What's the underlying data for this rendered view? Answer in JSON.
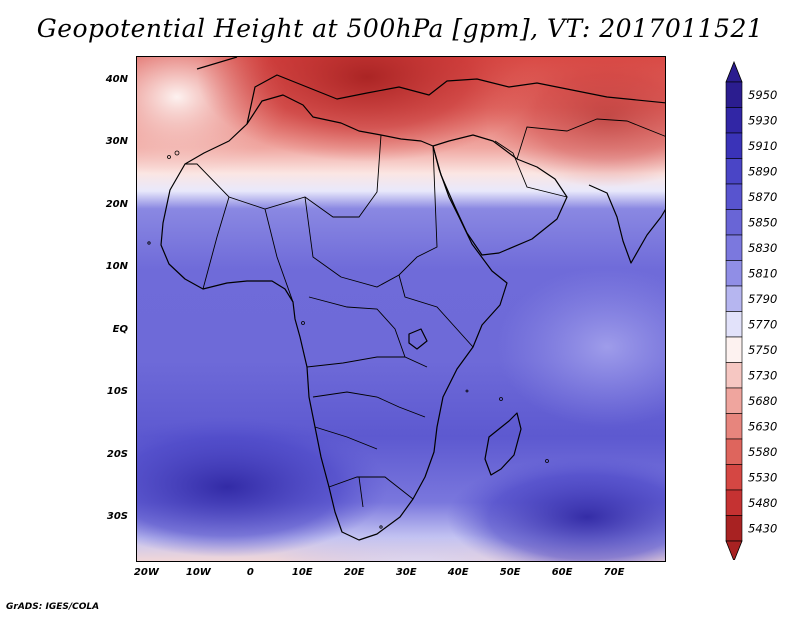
{
  "title": "Geopotential Height at 500hPa [gpm], VT: 2017011521",
  "credit": "GrADS: IGES/COLA",
  "map": {
    "y_axis": [
      {
        "label": "40N",
        "lat": 40
      },
      {
        "label": "30N",
        "lat": 30
      },
      {
        "label": "20N",
        "lat": 20
      },
      {
        "label": "10N",
        "lat": 10
      },
      {
        "label": "EQ",
        "lat": 0
      },
      {
        "label": "10S",
        "lat": -10
      },
      {
        "label": "20S",
        "lat": -20
      },
      {
        "label": "30S",
        "lat": -30
      }
    ],
    "x_axis": [
      {
        "label": "20W",
        "lon": -20
      },
      {
        "label": "10W",
        "lon": -10
      },
      {
        "label": "0",
        "lon": 0
      },
      {
        "label": "10E",
        "lon": 10
      },
      {
        "label": "20E",
        "lon": 20
      },
      {
        "label": "30E",
        "lon": 30
      },
      {
        "label": "40E",
        "lon": 40
      },
      {
        "label": "50E",
        "lon": 50
      },
      {
        "label": "60E",
        "lon": 60
      },
      {
        "label": "70E",
        "lon": 70
      }
    ],
    "lon_range": [
      -22,
      80
    ],
    "lat_range": [
      -37,
      44
    ]
  },
  "colorbar": {
    "levels": [
      "5950",
      "5930",
      "5910",
      "5890",
      "5870",
      "5850",
      "5830",
      "5810",
      "5790",
      "5770",
      "5750",
      "5730",
      "5680",
      "5630",
      "5580",
      "5530",
      "5480",
      "5430"
    ],
    "colors": [
      "#2b1d8f",
      "#3126a5",
      "#3a33b8",
      "#4a45c6",
      "#5854cf",
      "#6965d6",
      "#7b78de",
      "#908ee6",
      "#b6b6f0",
      "#e2e2fa",
      "#fdf2f0",
      "#f6c7c2",
      "#efa59e",
      "#e7857d",
      "#de655d",
      "#d54743",
      "#c53232",
      "#a82222"
    ]
  }
}
